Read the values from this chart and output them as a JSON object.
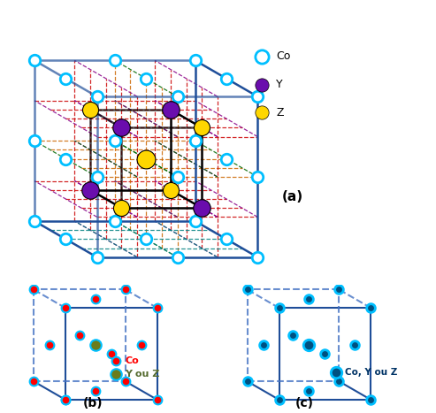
{
  "bg_color": "#ffffff",
  "cyan": "#00BFFF",
  "purple": "#6A0DAD",
  "yellow": "#FFD700",
  "red": "#FF0000",
  "olive": "#6B7C1A",
  "dark_navy": "#003580",
  "black": "#000000",
  "blue_line": "#1F4E99",
  "dashed_blue": "#4472C4",
  "legend_Co": "Co",
  "legend_Y": "Y",
  "legend_Z": "Z",
  "label_a": "(a)",
  "label_b": "(b)",
  "label_c": "(c)",
  "col_red_dash": "#CC0000",
  "col_orange_dash": "#CC6600",
  "col_purple_dash": "#880088",
  "col_green_dash": "#006600",
  "col_teal_dash": "#008080"
}
